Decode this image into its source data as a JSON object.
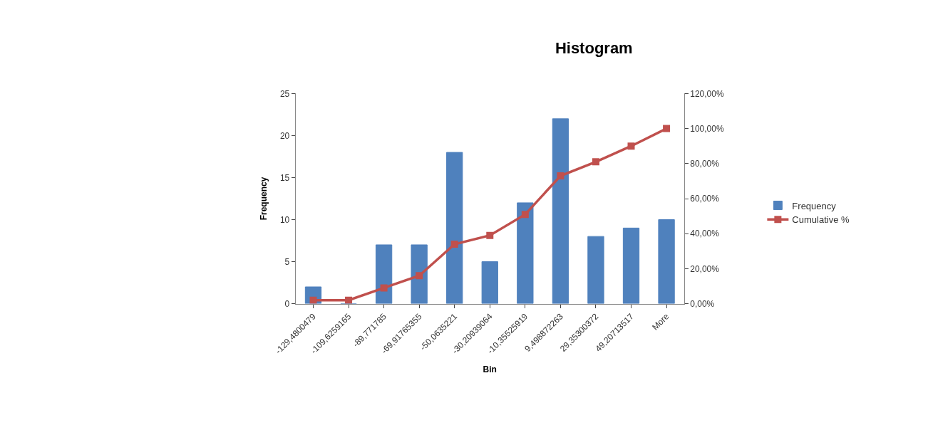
{
  "chart_data": {
    "type": "bar",
    "title": "Histogram",
    "xlabel": "Bin",
    "ylabel": "Frequency",
    "categories": [
      "-129,4800479",
      "-109,6259165",
      "-89,771785",
      "-69,91765355",
      "-50,0635221",
      "-30,20939064",
      "-10,35525919",
      "9,498872263",
      "29,35300372",
      "49,20713517",
      "More"
    ],
    "series": [
      {
        "name": "Frequency",
        "color": "#4f81bd",
        "values": [
          2,
          0,
          7,
          7,
          18,
          5,
          12,
          22,
          8,
          9,
          10
        ]
      },
      {
        "name": "Cumulative %",
        "type": "line",
        "axis": "y2",
        "color": "#c0504d",
        "marker": "square",
        "values": [
          2,
          2,
          9,
          16,
          34,
          39,
          51,
          73,
          81,
          90,
          100
        ]
      }
    ],
    "ylim": [
      0,
      25
    ],
    "yticks": [
      0,
      5,
      10,
      15,
      20,
      25
    ],
    "y2lim": [
      0,
      120
    ],
    "y2ticks": [
      {
        "value": 0,
        "label": "0,00%"
      },
      {
        "value": 20,
        "label": "20,00%"
      },
      {
        "value": 40,
        "label": "40,00%"
      },
      {
        "value": 60,
        "label": "60,00%"
      },
      {
        "value": 80,
        "label": "80,00%"
      },
      {
        "value": 100,
        "label": "100,00%"
      },
      {
        "value": 120,
        "label": "120,00%"
      }
    ],
    "legend": "right"
  }
}
